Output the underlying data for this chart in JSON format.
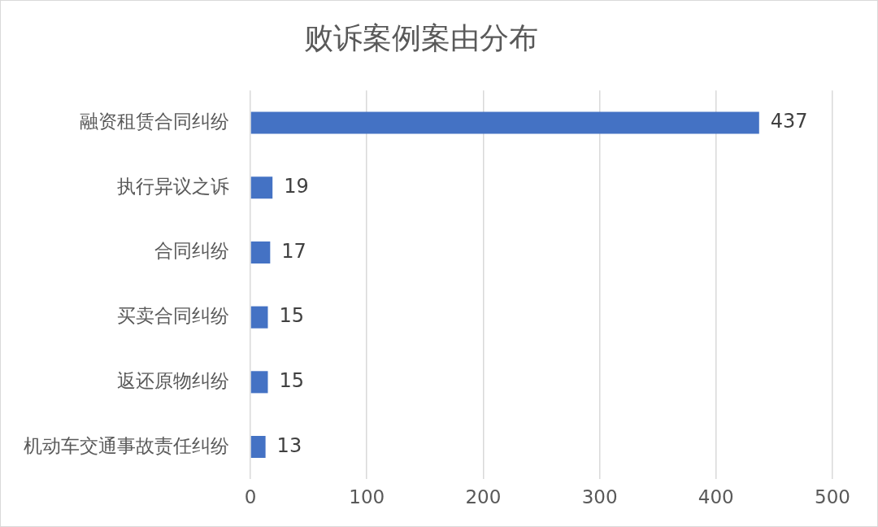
{
  "chart_data": {
    "type": "bar",
    "orientation": "horizontal",
    "title": "败诉案例案由分布",
    "categories": [
      "融资租赁合同纠纷",
      "执行异议之诉",
      "合同纠纷",
      "买卖合同纠纷",
      "返还原物纠纷",
      "机动车交通事故责任纠纷"
    ],
    "values": [
      437,
      19,
      17,
      15,
      15,
      13
    ],
    "color": "#4472c4",
    "xlim": [
      0,
      500
    ],
    "xticks": [
      0,
      100,
      200,
      300,
      400,
      500
    ],
    "grid": "x",
    "data_labels": true
  }
}
